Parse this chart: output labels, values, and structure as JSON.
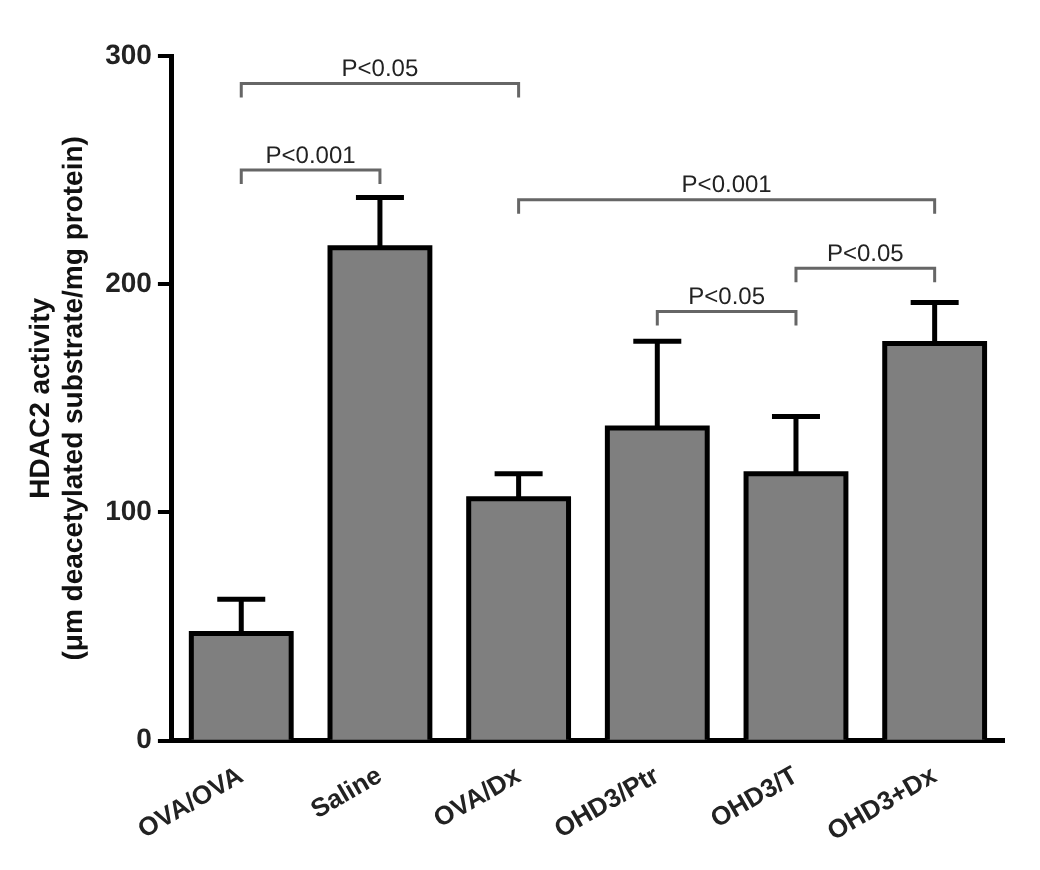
{
  "chart_data": {
    "type": "bar",
    "ylabel": "HDAC2 activity\n(μm deacetylated substrate/mg protein)",
    "categories": [
      "OVA/OVA",
      "Saline",
      "OVA/Dx",
      "OHD3/Ptr",
      "OHD3/T",
      "OHD3+Dx"
    ],
    "values": [
      47,
      216,
      106,
      137,
      117,
      174
    ],
    "errors": [
      [
        47,
        62
      ],
      [
        216,
        238
      ],
      [
        106,
        117
      ],
      [
        137,
        175
      ],
      [
        117,
        142
      ],
      [
        174,
        192
      ]
    ],
    "color": "#7f7f7f",
    "ylim": [
      0,
      300
    ],
    "yticks": [
      0,
      100,
      200,
      300
    ],
    "grid": false,
    "legend": false,
    "annotations": [
      "P<0.05",
      "P<0.001",
      "P<0.001",
      "P<0.05",
      "P<0.05"
    ]
  }
}
